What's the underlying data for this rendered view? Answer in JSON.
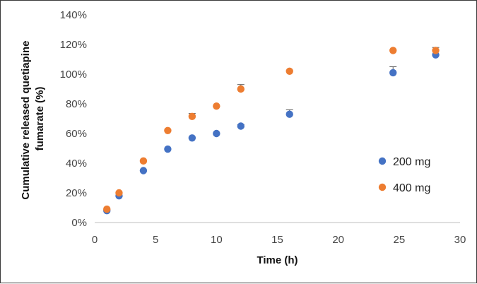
{
  "chart_data": {
    "type": "scatter",
    "xlabel": "Time (h)",
    "ylabel": "Cumulative released quetiapine fumarate (%)",
    "ylabel_lines": [
      "Cumulative released quetiapine",
      "fumarate (%)"
    ],
    "xlim": [
      0,
      30
    ],
    "ylim": [
      0,
      140
    ],
    "x_ticks": [
      0,
      5,
      10,
      15,
      20,
      25,
      30
    ],
    "x_tick_labels": [
      "0",
      "5",
      "10",
      "15",
      "20",
      "25",
      "30"
    ],
    "y_ticks": [
      0,
      20,
      40,
      60,
      80,
      100,
      120,
      140
    ],
    "y_tick_labels": [
      "0%",
      "20%",
      "40%",
      "60%",
      "80%",
      "100%",
      "120%",
      "140%"
    ],
    "grid": false,
    "legend_position": "right",
    "series": [
      {
        "name": "200 mg",
        "color": "#4472C4",
        "x": [
          1,
          2,
          4,
          6,
          8,
          10,
          12,
          16,
          24.5,
          28
        ],
        "y": [
          8,
          18,
          35,
          49.5,
          57,
          60,
          65,
          73,
          101,
          113
        ],
        "error": [
          0,
          0,
          0,
          0,
          0,
          0,
          1,
          3,
          4,
          0
        ]
      },
      {
        "name": "400 mg",
        "color": "#ED7D31",
        "x": [
          1,
          2,
          4,
          6,
          8,
          10,
          12,
          16,
          24.5,
          28
        ],
        "y": [
          9,
          20,
          41.5,
          62,
          71.5,
          78.5,
          90,
          102,
          116,
          116
        ],
        "error": [
          0,
          0,
          0,
          0,
          2,
          0,
          3,
          0,
          0,
          2
        ]
      }
    ]
  }
}
